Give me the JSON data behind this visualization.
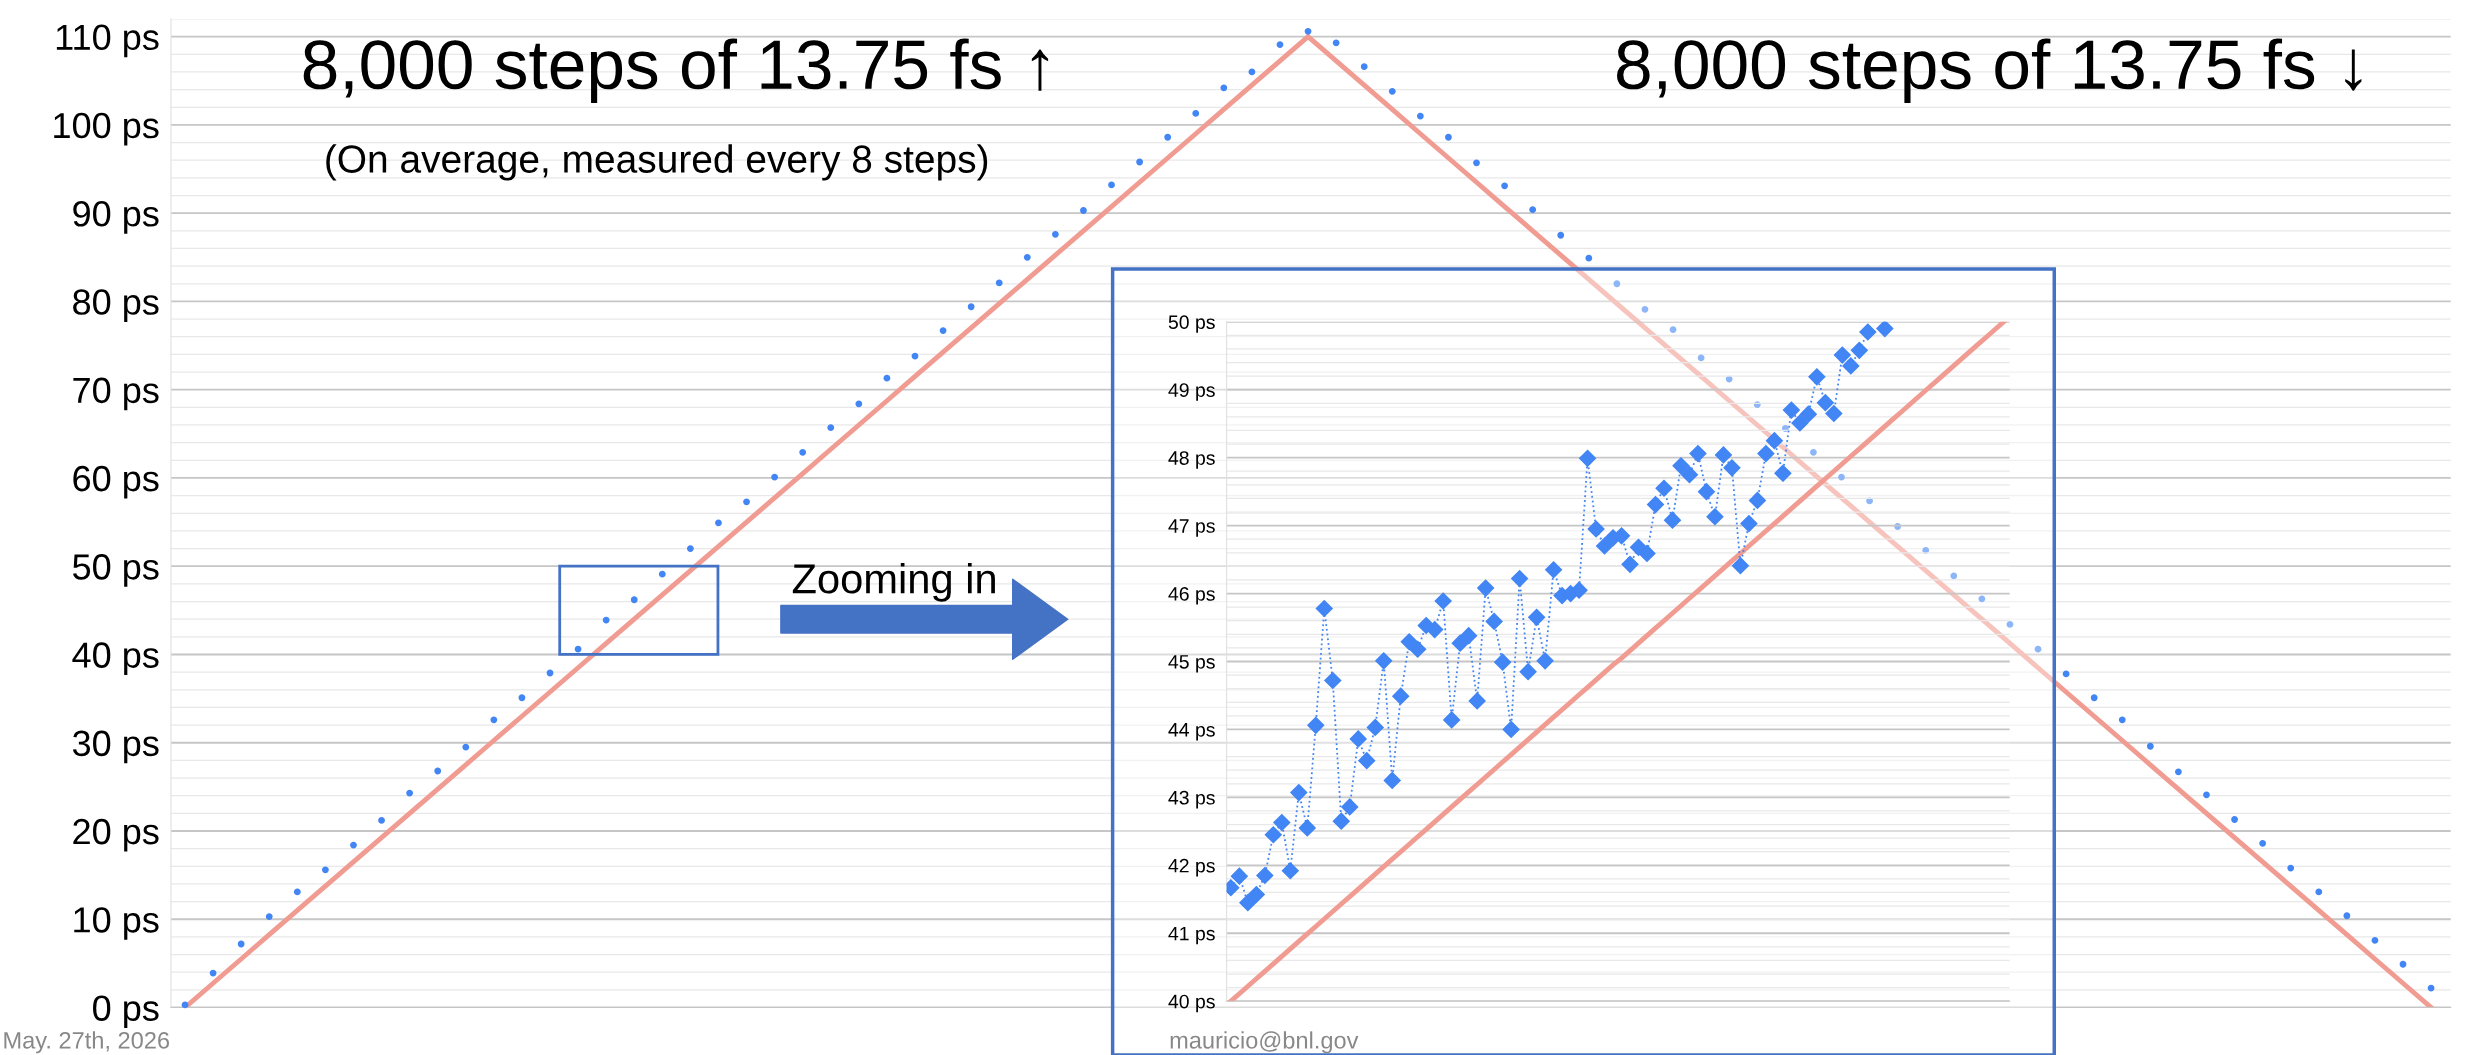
{
  "chart_data": [
    {
      "type": "scatter",
      "annotations": [
        "8,000 steps of 13.75 fs ↑",
        "(On average, measured every 8 steps)",
        "8,000 steps of 13.75 fs ↓",
        "Zooming in",
        "May. 27th, 2026",
        "mauricio@bnl.gov"
      ],
      "categories": [
        null,
        null,
        null,
        null,
        null,
        null,
        null,
        null,
        null,
        null,
        null,
        null,
        null,
        null,
        null,
        null,
        null,
        null,
        null,
        null,
        null,
        null,
        null,
        null,
        null,
        null,
        null,
        null,
        null,
        null,
        null,
        null,
        null,
        null,
        null,
        null,
        null,
        null,
        null,
        null,
        null,
        null,
        null,
        null,
        null,
        null,
        null,
        null,
        null,
        null,
        null,
        null,
        null,
        null,
        null,
        null,
        null,
        null,
        null,
        null,
        null,
        null,
        null,
        null,
        null,
        null,
        null,
        null,
        null,
        null,
        null,
        null,
        null,
        null,
        null,
        null,
        null,
        null,
        null,
        null,
        null
      ],
      "series": [
        {
          "type": "line",
          "color": "#f19c92",
          "line_style": "solid",
          "marker": "none",
          "values": [
            0,
            2.75,
            5.5,
            8.25,
            11,
            13.75,
            16.5,
            19.25,
            22,
            24.75,
            27.5,
            30.25,
            33,
            35.75,
            38.5,
            41.25,
            44,
            46.75,
            49.5,
            52.25,
            55,
            57.75,
            60.5,
            63.25,
            66,
            68.75,
            71.5,
            74.25,
            77,
            79.75,
            82.5,
            85.25,
            88,
            90.75,
            93.5,
            96.25,
            99,
            101.75,
            104.5,
            107.25,
            110,
            107.25,
            104.5,
            101.75,
            99,
            96.25,
            93.5,
            90.75,
            88,
            85.25,
            82.5,
            79.75,
            77,
            74.25,
            71.5,
            68.75,
            66,
            63.25,
            60.5,
            57.75,
            55,
            52.25,
            49.5,
            46.75,
            44,
            41.25,
            38.5,
            35.75,
            33,
            30.25,
            27.5,
            24.75,
            22,
            19.25,
            16.5,
            13.75,
            11,
            8.25,
            5.5,
            2.75,
            0
          ]
        },
        {
          "color": "#4285f4",
          "marker": "circle",
          "values": [
            0.3,
            3.9,
            7.2,
            10.3,
            13.1,
            15.6,
            18.4,
            21.2,
            24.3,
            26.8,
            29.5,
            32.6,
            35.1,
            37.9,
            40.6,
            43.9,
            46.2,
            49.1,
            52.0,
            54.9,
            57.3,
            60.1,
            62.9,
            65.7,
            68.4,
            71.3,
            73.8,
            76.7,
            79.4,
            82.1,
            85.0,
            87.6,
            90.3,
            93.2,
            95.8,
            98.6,
            101.3,
            104.2,
            106.0,
            109.1,
            110.6,
            109.3,
            106.6,
            103.8,
            101.0,
            98.6,
            95.7,
            93.1,
            90.4,
            87.5,
            84.9,
            82.0,
            79.1,
            76.8,
            73.6,
            71.2,
            68.3,
            65.6,
            62.9,
            60.1,
            57.4,
            54.5,
            51.8,
            48.9,
            46.3,
            43.4,
            40.6,
            37.8,
            35.1,
            32.6,
            29.6,
            26.7,
            24.1,
            21.3,
            18.6,
            15.8,
            13.1,
            10.4,
            7.6,
            4.9,
            2.2
          ]
        }
      ],
      "ylim": [
        0,
        112
      ],
      "yticks": [
        {
          "value": 0,
          "label": "0 ps"
        },
        {
          "value": 10,
          "label": "10 ps"
        },
        {
          "value": 20,
          "label": "20 ps"
        },
        {
          "value": 30,
          "label": "30 ps"
        },
        {
          "value": 40,
          "label": "40 ps"
        },
        {
          "value": 50,
          "label": "50 ps"
        },
        {
          "value": 60,
          "label": "60 ps"
        },
        {
          "value": 70,
          "label": "70 ps"
        },
        {
          "value": 80,
          "label": "80 ps"
        },
        {
          "value": 90,
          "label": "90 ps"
        },
        {
          "value": 100,
          "label": "100 ps"
        },
        {
          "value": 110,
          "label": "110 ps"
        }
      ],
      "grid": "y"
    },
    {
      "type": "line",
      "categories": [
        null,
        null,
        null,
        null,
        null,
        null,
        null,
        null,
        null,
        null,
        null,
        null,
        null,
        null,
        null,
        null,
        null,
        null,
        null,
        null,
        null,
        null,
        null,
        null,
        null,
        null,
        null,
        null,
        null,
        null,
        null,
        null,
        null,
        null,
        null,
        null,
        null,
        null,
        null,
        null,
        null,
        null,
        null,
        null,
        null,
        null,
        null,
        null,
        null,
        null,
        null,
        null,
        null,
        null,
        null,
        null,
        null,
        null,
        null,
        null,
        null,
        null,
        null,
        null,
        null,
        null,
        null,
        null,
        null,
        null,
        null,
        null,
        null,
        null,
        null,
        null,
        null,
        null,
        null,
        null,
        null,
        null,
        null,
        null,
        null,
        null,
        null,
        null,
        null,
        null,
        null,
        null
      ],
      "series": [
        {
          "type": "line",
          "color": "#f19c92",
          "line_style": "solid",
          "marker": "none",
          "values": [
            40.0,
            40.11,
            40.22,
            40.33,
            40.44,
            40.55,
            40.66,
            40.77,
            40.88,
            40.99,
            41.1,
            41.21,
            41.32,
            41.43,
            41.54,
            41.65,
            41.76,
            41.87,
            41.98,
            42.09,
            42.2,
            42.31,
            42.42,
            42.53,
            42.64,
            42.75,
            42.86,
            42.97,
            43.08,
            43.19,
            43.3,
            43.41,
            43.52,
            43.63,
            43.74,
            43.85,
            43.96,
            44.07,
            44.18,
            44.29,
            44.4,
            44.51,
            44.62,
            44.73,
            44.84,
            44.95,
            45.05,
            45.16,
            45.27,
            45.38,
            45.49,
            45.6,
            45.71,
            45.82,
            45.93,
            46.04,
            46.15,
            46.26,
            46.37,
            46.48,
            46.59,
            46.7,
            46.81,
            46.92,
            47.03,
            47.14,
            47.25,
            47.36,
            47.47,
            47.58,
            47.69,
            47.8,
            47.91,
            48.02,
            48.13,
            48.24,
            48.35,
            48.46,
            48.57,
            48.68,
            48.79,
            48.9,
            49.01,
            49.12,
            49.23,
            49.34,
            49.45,
            49.56,
            49.67,
            49.78,
            49.89,
            50.0
          ]
        },
        {
          "color": "#4285f4",
          "line_style": "dotted",
          "marker": "diamond",
          "values": [
            41.67,
            41.84,
            41.45,
            41.57,
            41.85,
            42.45,
            42.63,
            41.92,
            43.07,
            42.55,
            44.06,
            45.78,
            44.72,
            42.65,
            42.86,
            43.86,
            43.54,
            44.03,
            45.01,
            43.25,
            44.49,
            45.29,
            45.18,
            45.53,
            45.47,
            45.89,
            44.14,
            45.27,
            45.38,
            44.42,
            46.08,
            45.59,
            44.99,
            44.0,
            46.22,
            44.85,
            45.65,
            45.01,
            46.35,
            45.97,
            46.0,
            46.05,
            47.99,
            46.95,
            46.7,
            46.82,
            46.85,
            46.43,
            46.68,
            46.59,
            47.31,
            47.55,
            47.08,
            47.88,
            47.75,
            48.06,
            47.5,
            47.13,
            48.04,
            47.85,
            46.41,
            47.03,
            47.37,
            48.06,
            48.25,
            47.77,
            48.7,
            48.51,
            48.64,
            49.19,
            48.81,
            48.65,
            49.51,
            49.35,
            49.58,
            49.85,
            null,
            49.9,
            null,
            null,
            null,
            null,
            null,
            null,
            null,
            null,
            null,
            null,
            null,
            null,
            null,
            null
          ]
        }
      ],
      "ylim": [
        40,
        50
      ],
      "yticks": [
        {
          "value": 40,
          "label": "40 ps"
        },
        {
          "value": 41,
          "label": "41 ps"
        },
        {
          "value": 42,
          "label": "42 ps"
        },
        {
          "value": 43,
          "label": "43 ps"
        },
        {
          "value": 44,
          "label": "44 ps"
        },
        {
          "value": 45,
          "label": "45 ps"
        },
        {
          "value": 46,
          "label": "46 ps"
        },
        {
          "value": 47,
          "label": "47 ps"
        },
        {
          "value": 48,
          "label": "48 ps"
        },
        {
          "value": 49,
          "label": "49 ps"
        },
        {
          "value": 50,
          "label": "50 ps"
        }
      ],
      "grid": "y"
    }
  ]
}
